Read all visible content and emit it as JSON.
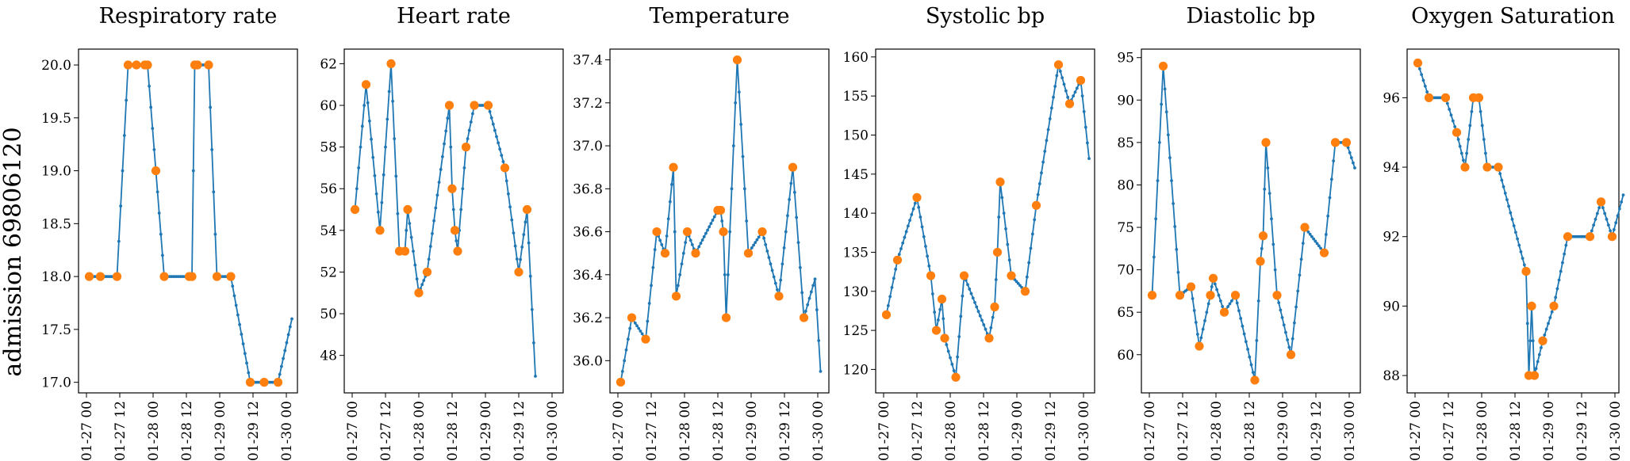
{
  "row_label": "admission 69806120",
  "colors": {
    "line": "#1f77b4",
    "observed": "#ff7f0e"
  },
  "x_tick_labels": [
    "01-27 00",
    "01-27 12",
    "01-28 00",
    "01-28 12",
    "01-29 00",
    "01-29 12",
    "01-30 00"
  ],
  "chart_data": [
    {
      "type": "line",
      "title": "Respiratory rate",
      "x_unit": "hours since 01-27 00",
      "x_range": [
        0,
        72
      ],
      "ylim": [
        16.9,
        20.15
      ],
      "yticks": [
        17.0,
        17.5,
        18.0,
        18.5,
        19.0,
        19.5,
        20.0
      ],
      "ytick_labels": [
        "17.0",
        "17.5",
        "18.0",
        "18.5",
        "19.0",
        "19.5",
        "20.0"
      ],
      "grid": false,
      "series": [
        {
          "values": [
            [
              1,
              18
            ],
            [
              5,
              18
            ],
            [
              11,
              18
            ],
            [
              15,
              20
            ],
            [
              18,
              20
            ],
            [
              21,
              20
            ],
            [
              22,
              20
            ],
            [
              25,
              19
            ],
            [
              28,
              18
            ],
            [
              37,
              18
            ],
            [
              38,
              18
            ],
            [
              39,
              20
            ],
            [
              40,
              20
            ],
            [
              44,
              20
            ],
            [
              47,
              18
            ],
            [
              52,
              18
            ],
            [
              59,
              17
            ],
            [
              64,
              17
            ],
            [
              69,
              17
            ],
            [
              74,
              17.6
            ]
          ]
        },
        {
          "values": [
            [
              1,
              18
            ],
            [
              5,
              18
            ],
            [
              11,
              18
            ],
            [
              15,
              20
            ],
            [
              18,
              20
            ],
            [
              21,
              20
            ],
            [
              22,
              20
            ],
            [
              25,
              19
            ],
            [
              28,
              18
            ],
            [
              37,
              18
            ],
            [
              38,
              18
            ],
            [
              39,
              20
            ],
            [
              40,
              20
            ],
            [
              44,
              20
            ],
            [
              47,
              18
            ],
            [
              52,
              18
            ],
            [
              59,
              17
            ],
            [
              64,
              17
            ],
            [
              69,
              17
            ]
          ]
        }
      ]
    },
    {
      "type": "line",
      "title": "Heart rate",
      "x_unit": "hours since 01-27 00",
      "x_range": [
        0,
        72
      ],
      "ylim": [
        46.2,
        62.7
      ],
      "yticks": [
        48,
        50,
        52,
        54,
        56,
        58,
        60,
        62
      ],
      "ytick_labels": [
        "48",
        "50",
        "52",
        "54",
        "56",
        "58",
        "60",
        "62"
      ],
      "grid": false,
      "series": [
        {
          "values": [
            [
              1,
              55
            ],
            [
              5,
              61
            ],
            [
              10,
              54
            ],
            [
              14,
              62
            ],
            [
              17,
              53
            ],
            [
              19,
              53
            ],
            [
              20,
              55
            ],
            [
              24,
              51
            ],
            [
              27,
              52
            ],
            [
              35,
              60
            ],
            [
              36,
              56
            ],
            [
              37,
              54
            ],
            [
              38,
              53
            ],
            [
              41,
              58
            ],
            [
              44,
              60
            ],
            [
              49,
              60
            ],
            [
              55,
              57
            ],
            [
              60,
              52
            ],
            [
              63,
              55
            ],
            [
              66,
              47
            ]
          ]
        },
        {
          "values": [
            [
              1,
              55
            ],
            [
              5,
              61
            ],
            [
              10,
              54
            ],
            [
              14,
              62
            ],
            [
              17,
              53
            ],
            [
              19,
              53
            ],
            [
              20,
              55
            ],
            [
              24,
              51
            ],
            [
              27,
              52
            ],
            [
              35,
              60
            ],
            [
              36,
              56
            ],
            [
              37,
              54
            ],
            [
              38,
              53
            ],
            [
              41,
              58
            ],
            [
              44,
              60
            ],
            [
              49,
              60
            ],
            [
              55,
              57
            ],
            [
              60,
              52
            ],
            [
              63,
              55
            ]
          ]
        }
      ]
    },
    {
      "type": "line",
      "title": "Temperature",
      "x_unit": "hours since 01-27 00",
      "x_range": [
        0,
        72
      ],
      "ylim": [
        35.85,
        37.45
      ],
      "yticks": [
        36.0,
        36.2,
        36.4,
        36.6,
        36.8,
        37.0,
        37.2,
        37.4
      ],
      "ytick_labels": [
        "36.0",
        "36.2",
        "36.4",
        "36.6",
        "36.8",
        "37.0",
        "37.2",
        "37.4"
      ],
      "grid": false,
      "series": [
        {
          "values": [
            [
              1,
              35.9
            ],
            [
              5,
              36.2
            ],
            [
              10,
              36.1
            ],
            [
              14,
              36.6
            ],
            [
              17,
              36.5
            ],
            [
              20,
              36.9
            ],
            [
              21,
              36.3
            ],
            [
              25,
              36.6
            ],
            [
              28,
              36.5
            ],
            [
              36,
              36.7
            ],
            [
              37,
              36.7
            ],
            [
              38,
              36.6
            ],
            [
              39,
              36.2
            ],
            [
              43,
              37.4
            ],
            [
              47,
              36.5
            ],
            [
              52,
              36.6
            ],
            [
              58,
              36.3
            ],
            [
              63,
              36.9
            ],
            [
              67,
              36.2
            ],
            [
              71,
              36.38
            ],
            [
              73,
              35.95
            ]
          ]
        },
        {
          "values": [
            [
              1,
              35.9
            ],
            [
              5,
              36.2
            ],
            [
              10,
              36.1
            ],
            [
              14,
              36.6
            ],
            [
              17,
              36.5
            ],
            [
              20,
              36.9
            ],
            [
              21,
              36.3
            ],
            [
              25,
              36.6
            ],
            [
              28,
              36.5
            ],
            [
              36,
              36.7
            ],
            [
              37,
              36.7
            ],
            [
              38,
              36.6
            ],
            [
              39,
              36.2
            ],
            [
              43,
              37.4
            ],
            [
              47,
              36.5
            ],
            [
              52,
              36.6
            ],
            [
              58,
              36.3
            ],
            [
              63,
              36.9
            ],
            [
              67,
              36.2
            ]
          ]
        }
      ]
    },
    {
      "type": "line",
      "title": "Systolic bp",
      "x_unit": "hours since 01-27 00",
      "x_range": [
        0,
        72
      ],
      "ylim": [
        117,
        161
      ],
      "yticks": [
        120,
        125,
        130,
        135,
        140,
        145,
        150,
        155,
        160
      ],
      "ytick_labels": [
        "120",
        "125",
        "130",
        "135",
        "140",
        "145",
        "150",
        "155",
        "160"
      ],
      "grid": false,
      "series": [
        {
          "values": [
            [
              1,
              127
            ],
            [
              5,
              134
            ],
            [
              12,
              142
            ],
            [
              17,
              132
            ],
            [
              19,
              125
            ],
            [
              21,
              129
            ],
            [
              22,
              124
            ],
            [
              26,
              119
            ],
            [
              29,
              132
            ],
            [
              38,
              124
            ],
            [
              40,
              128
            ],
            [
              41,
              135
            ],
            [
              42,
              144
            ],
            [
              46,
              132
            ],
            [
              51,
              130
            ],
            [
              55,
              141
            ],
            [
              63,
              159
            ],
            [
              67,
              154
            ],
            [
              71,
              157
            ],
            [
              74,
              147
            ]
          ]
        },
        {
          "values": [
            [
              1,
              127
            ],
            [
              5,
              134
            ],
            [
              12,
              142
            ],
            [
              17,
              132
            ],
            [
              19,
              125
            ],
            [
              21,
              129
            ],
            [
              22,
              124
            ],
            [
              26,
              119
            ],
            [
              29,
              132
            ],
            [
              38,
              124
            ],
            [
              40,
              128
            ],
            [
              41,
              135
            ],
            [
              42,
              144
            ],
            [
              46,
              132
            ],
            [
              51,
              130
            ],
            [
              55,
              141
            ],
            [
              63,
              159
            ],
            [
              67,
              154
            ],
            [
              71,
              157
            ]
          ]
        }
      ]
    },
    {
      "type": "line",
      "title": "Diastolic bp",
      "x_unit": "hours since 01-27 00",
      "x_range": [
        0,
        72
      ],
      "ylim": [
        55.5,
        96
      ],
      "yticks": [
        60,
        65,
        70,
        75,
        80,
        85,
        90,
        95
      ],
      "ytick_labels": [
        "60",
        "65",
        "70",
        "75",
        "80",
        "85",
        "90",
        "95"
      ],
      "grid": false,
      "series": [
        {
          "values": [
            [
              1,
              67
            ],
            [
              5,
              94
            ],
            [
              11,
              67
            ],
            [
              15,
              68
            ],
            [
              18,
              61
            ],
            [
              22,
              67
            ],
            [
              23,
              69
            ],
            [
              27,
              65
            ],
            [
              31,
              67
            ],
            [
              38,
              57
            ],
            [
              40,
              71
            ],
            [
              41,
              74
            ],
            [
              42,
              85
            ],
            [
              46,
              67
            ],
            [
              51,
              60
            ],
            [
              56,
              75
            ],
            [
              63,
              72
            ],
            [
              67,
              85
            ],
            [
              71,
              85
            ],
            [
              74,
              82
            ]
          ]
        },
        {
          "values": [
            [
              1,
              67
            ],
            [
              5,
              94
            ],
            [
              11,
              67
            ],
            [
              15,
              68
            ],
            [
              18,
              61
            ],
            [
              22,
              67
            ],
            [
              23,
              69
            ],
            [
              27,
              65
            ],
            [
              31,
              67
            ],
            [
              38,
              57
            ],
            [
              40,
              71
            ],
            [
              41,
              74
            ],
            [
              42,
              85
            ],
            [
              46,
              67
            ],
            [
              51,
              60
            ],
            [
              56,
              75
            ],
            [
              63,
              72
            ],
            [
              67,
              85
            ],
            [
              71,
              85
            ]
          ]
        }
      ]
    },
    {
      "type": "line",
      "title": "Oxygen Saturation",
      "x_unit": "hours since 01-27 00",
      "x_range": [
        0,
        72
      ],
      "ylim": [
        87.5,
        97.4
      ],
      "yticks": [
        88,
        90,
        92,
        94,
        96
      ],
      "ytick_labels": [
        "88",
        "90",
        "92",
        "94",
        "96"
      ],
      "grid": false,
      "series": [
        {
          "values": [
            [
              1,
              97
            ],
            [
              5,
              96
            ],
            [
              11,
              96
            ],
            [
              15,
              95
            ],
            [
              18,
              94
            ],
            [
              21,
              96
            ],
            [
              23,
              96
            ],
            [
              26,
              94
            ],
            [
              30,
              94
            ],
            [
              40,
              91
            ],
            [
              41,
              88
            ],
            [
              42,
              90
            ],
            [
              43,
              88
            ],
            [
              46,
              89
            ],
            [
              50,
              90
            ],
            [
              55,
              92
            ],
            [
              63,
              92
            ],
            [
              67,
              93
            ],
            [
              71,
              92
            ],
            [
              75,
              93.2
            ]
          ]
        },
        {
          "values": [
            [
              1,
              97
            ],
            [
              5,
              96
            ],
            [
              11,
              96
            ],
            [
              15,
              95
            ],
            [
              18,
              94
            ],
            [
              21,
              96
            ],
            [
              23,
              96
            ],
            [
              26,
              94
            ],
            [
              30,
              94
            ],
            [
              40,
              91
            ],
            [
              41,
              88
            ],
            [
              42,
              90
            ],
            [
              43,
              88
            ],
            [
              46,
              89
            ],
            [
              50,
              90
            ],
            [
              55,
              92
            ],
            [
              63,
              92
            ],
            [
              67,
              93
            ],
            [
              71,
              92
            ]
          ]
        }
      ]
    }
  ]
}
